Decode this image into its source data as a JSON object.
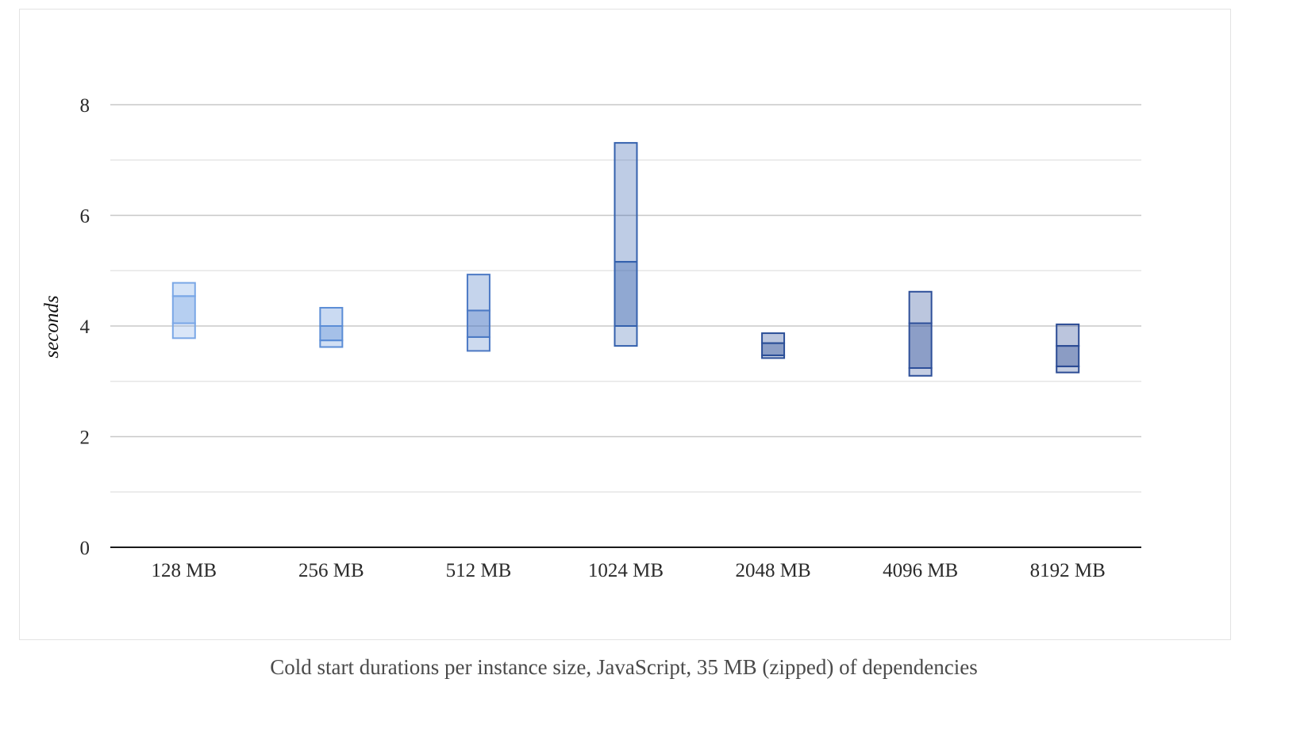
{
  "caption": "Cold start durations per instance size, JavaScript, 35 MB (zipped) of dependencies",
  "chart_data": {
    "type": "box",
    "title": "",
    "xlabel": "",
    "ylabel": "seconds",
    "ylim": [
      0,
      9
    ],
    "y_ticks": [
      0,
      2,
      4,
      6,
      8
    ],
    "y_minor_gridlines": [
      1,
      3,
      5,
      7
    ],
    "grid": true,
    "categories": [
      "128 MB",
      "256 MB",
      "512 MB",
      "1024 MB",
      "2048 MB",
      "4096 MB",
      "8192 MB"
    ],
    "boxes": [
      {
        "min": 3.78,
        "q1": 4.05,
        "median": 4.05,
        "q3": 4.54,
        "max": 4.78,
        "color": "#7aa7e6"
      },
      {
        "min": 3.62,
        "q1": 3.74,
        "median": 3.74,
        "q3": 4.0,
        "max": 4.33,
        "color": "#5b8dd6"
      },
      {
        "min": 3.55,
        "q1": 3.8,
        "median": 3.8,
        "q3": 4.28,
        "max": 4.93,
        "color": "#4c79c4"
      },
      {
        "min": 3.64,
        "q1": 4.0,
        "median": 4.0,
        "q3": 5.16,
        "max": 7.31,
        "color": "#3461ad"
      },
      {
        "min": 3.42,
        "q1": 3.47,
        "median": 3.47,
        "q3": 3.69,
        "max": 3.87,
        "color": "#2b4f98"
      },
      {
        "min": 3.1,
        "q1": 3.24,
        "median": 3.24,
        "q3": 4.05,
        "max": 4.62,
        "color": "#2d4f99"
      },
      {
        "min": 3.16,
        "q1": 3.27,
        "median": 3.27,
        "q3": 3.64,
        "max": 4.03,
        "color": "#2b4b94"
      }
    ]
  }
}
